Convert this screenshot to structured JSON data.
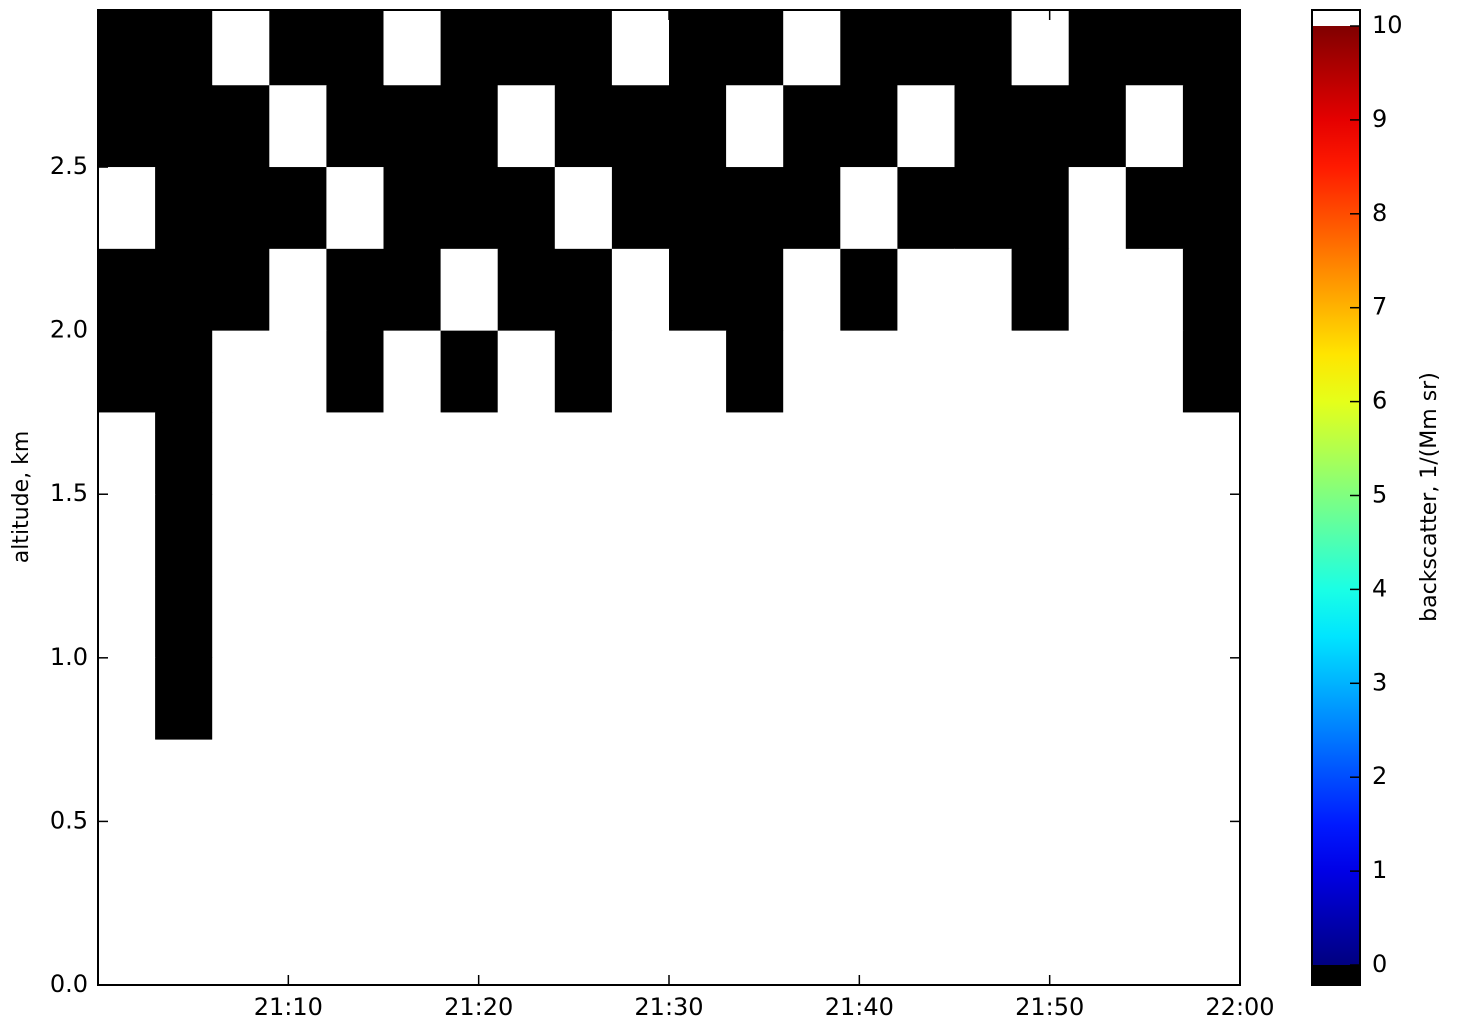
{
  "chart_data": {
    "type": "heatmap",
    "ylabel": "altitude, km",
    "xlim": [
      "21:00",
      "22:00"
    ],
    "xticks": [
      "21:10",
      "21:20",
      "21:30",
      "21:40",
      "21:50",
      "22:00"
    ],
    "ylim": [
      0,
      2.98
    ],
    "yticks": [
      {
        "value": 0,
        "label": "0.0"
      },
      0.5,
      {
        "value": 1,
        "label": "1.0"
      },
      1.5,
      {
        "value": 2,
        "label": "2.0"
      },
      2.5
    ],
    "y": [
      2.875,
      2.625,
      2.375,
      2.125,
      1.875,
      1.625,
      1.375,
      1.125,
      0.875,
      0.625,
      0.375,
      0.125
    ],
    "z": [
      [
        -1,
        -1,
        12,
        -1,
        -1,
        12,
        -1,
        -1,
        -1,
        12,
        -1,
        -1,
        12,
        -1,
        -1,
        -1,
        12,
        -1,
        -1,
        -1
      ],
      [
        -1,
        -1,
        -1,
        12,
        -1,
        -1,
        -1,
        12,
        -1,
        -1,
        -1,
        12,
        -1,
        -1,
        12,
        -1,
        -1,
        -1,
        12,
        -1
      ],
      [
        12,
        -1,
        -1,
        -1,
        12,
        -1,
        -1,
        -1,
        12,
        -1,
        -1,
        -1,
        -1,
        12,
        -1,
        -1,
        -1,
        12,
        -1,
        -1
      ],
      [
        -1,
        -1,
        -1,
        12,
        -1,
        -1,
        12,
        -1,
        -1,
        12,
        -1,
        -1,
        12,
        -1,
        12,
        12,
        -1,
        12,
        12,
        -1
      ],
      [
        -1,
        -1,
        12,
        12,
        -1,
        12,
        -1,
        12,
        -1,
        12,
        12,
        -1,
        12,
        12,
        12,
        12,
        12,
        12,
        12,
        -1
      ],
      [
        12,
        -1,
        12,
        12,
        12,
        12,
        12,
        12,
        12,
        12,
        12,
        12,
        12,
        12,
        12,
        12,
        12,
        12,
        12,
        12
      ],
      [
        12,
        -1,
        12,
        12,
        12,
        12,
        12,
        12,
        12,
        12,
        12,
        12,
        12,
        12,
        12,
        12,
        12,
        12,
        12,
        12
      ],
      [
        12,
        -1,
        12,
        12,
        12,
        12,
        12,
        12,
        12,
        12,
        12,
        12,
        12,
        12,
        12,
        12,
        12,
        12,
        12,
        12
      ],
      [
        12,
        -1,
        12,
        12,
        12,
        12,
        12,
        12,
        12,
        12,
        12,
        12,
        12,
        12,
        12,
        12,
        12,
        12,
        12,
        12
      ],
      [
        12,
        12,
        12,
        12,
        12,
        12,
        12,
        12,
        12,
        12,
        12,
        12,
        12,
        12,
        12,
        12,
        12,
        12,
        12,
        12
      ],
      [
        12,
        12,
        12,
        12,
        12,
        12,
        12,
        12,
        12,
        12,
        12,
        12,
        12,
        12,
        12,
        12,
        12,
        12,
        12,
        12
      ],
      [
        12,
        12,
        12,
        12,
        12,
        12,
        12,
        12,
        12,
        12,
        12,
        12,
        12,
        12,
        12,
        12,
        12,
        12,
        12,
        12
      ]
    ],
    "colorbar": {
      "label": "backscatter, 1/(Mm sr)",
      "clim": [
        0,
        10
      ],
      "ticks": [
        0,
        1,
        2,
        3,
        4,
        5,
        6,
        7,
        8,
        9,
        10
      ],
      "under_color": "#000000",
      "over_color": "#ffffff",
      "colormap": "jet"
    }
  }
}
